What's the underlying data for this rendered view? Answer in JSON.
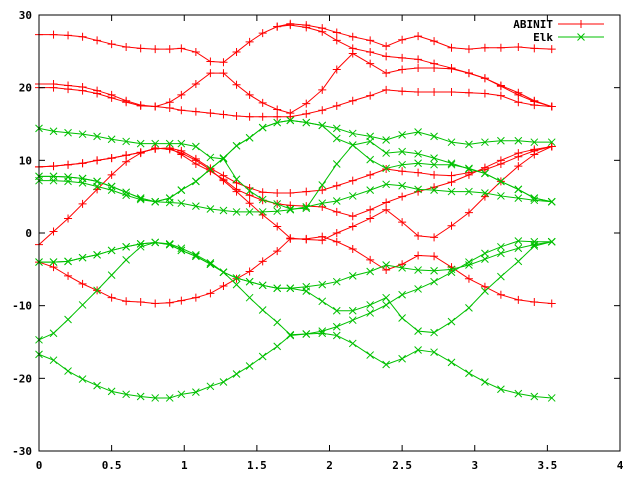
{
  "chart_data": {
    "type": "line",
    "title": "",
    "xlabel": "",
    "ylabel": "",
    "xlim": [
      0,
      4
    ],
    "ylim": [
      -30,
      30
    ],
    "grid": false,
    "legend_position": "top-right",
    "x_ticks": [
      "0",
      "0.5",
      "1",
      "1.5",
      "2",
      "2.5",
      "3",
      "3.5",
      "4"
    ],
    "x_tick_values": [
      0,
      0.5,
      1,
      1.5,
      2,
      2.5,
      3,
      3.5,
      4
    ],
    "y_ticks": [
      "30",
      "20",
      "10",
      "0",
      "-10",
      "-20",
      "-30"
    ],
    "y_tick_values": [
      30,
      20,
      10,
      0,
      -10,
      -20,
      -30
    ],
    "x": [
      0,
      0.1,
      0.2,
      0.3,
      0.4,
      0.5,
      0.6,
      0.7,
      0.8,
      0.9,
      0.98,
      1.08,
      1.18,
      1.27,
      1.36,
      1.45,
      1.54,
      1.64,
      1.73,
      1.84,
      1.95,
      2.05,
      2.16,
      2.28,
      2.39,
      2.5,
      2.61,
      2.72,
      2.84,
      2.96,
      3.07,
      3.18,
      3.3,
      3.41,
      3.53
    ],
    "series": [
      {
        "name": "ABINIT",
        "color": "#ff0000",
        "marker": "plus",
        "bands": [
          [
            27.3,
            27.3,
            27.2,
            27.0,
            26.5,
            26.0,
            25.6,
            25.4,
            25.3,
            25.3,
            25.4,
            24.9,
            23.6,
            23.5,
            24.9,
            26.3,
            27.5,
            28.4,
            28.8,
            28.6,
            28.2,
            27.6,
            27.0,
            26.5,
            25.7,
            26.6,
            27.1,
            26.4,
            25.5,
            25.3,
            25.5,
            25.5,
            25.6,
            25.4,
            25.3
          ],
          [
            20.5,
            20.5,
            20.3,
            20.1,
            19.6,
            19.0,
            18.2,
            17.6,
            17.4,
            18.0,
            19.0,
            20.5,
            22.0,
            22.0,
            20.4,
            19.0,
            17.9,
            17.0,
            16.5,
            17.8,
            19.7,
            22.5,
            24.7,
            23.3,
            22.0,
            22.5,
            22.7,
            22.7,
            22.6,
            22.0,
            21.3,
            20.2,
            19.0,
            18.1,
            17.4
          ],
          [
            20.0,
            20.0,
            19.8,
            19.6,
            19.2,
            18.6,
            18.0,
            17.5,
            17.4,
            17.2,
            16.9,
            16.7,
            16.5,
            16.3,
            16.1,
            16.0,
            16.0,
            16.0,
            16.0,
            16.4,
            16.9,
            17.5,
            18.2,
            18.9,
            19.7,
            19.5,
            19.4,
            19.4,
            19.4,
            19.3,
            19.2,
            18.9,
            18.0,
            17.6,
            17.4
          ],
          [
            null,
            null,
            null,
            null,
            null,
            null,
            null,
            null,
            null,
            null,
            null,
            null,
            null,
            null,
            null,
            null,
            null,
            28.4,
            28.6,
            28.3,
            27.7,
            26.5,
            25.4,
            24.9,
            24.3,
            24.1,
            23.9,
            23.3,
            22.7,
            22.0,
            21.3,
            20.3,
            19.3,
            18.2,
            17.4
          ],
          [
            9.1,
            9.2,
            9.4,
            9.6,
            10.0,
            10.3,
            10.7,
            11.1,
            11.6,
            11.7,
            11.3,
            10.2,
            8.9,
            7.9,
            6.9,
            6.2,
            5.6,
            5.5,
            5.5,
            5.7,
            5.9,
            6.5,
            7.2,
            8.0,
            8.8,
            8.5,
            8.3,
            8.0,
            7.9,
            8.3,
            8.7,
            9.5,
            10.5,
            11.3,
            11.9
          ],
          [
            9.1,
            9.2,
            9.4,
            9.6,
            10.0,
            10.3,
            10.7,
            11.1,
            11.6,
            11.7,
            10.8,
            9.5,
            8.5,
            7.4,
            6.0,
            5.2,
            4.5,
            4.0,
            3.8,
            3.7,
            3.6,
            2.9,
            2.3,
            3.2,
            4.2,
            5.0,
            5.7,
            6.3,
            7.0,
            8.0,
            9.0,
            10.0,
            11.0,
            11.5,
            11.9
          ],
          [
            -1.6,
            0.2,
            2.0,
            4.0,
            6.0,
            8.0,
            9.8,
            11.0,
            11.7,
            11.5,
            11.0,
            10.0,
            8.7,
            7.2,
            5.7,
            4.1,
            2.5,
            0.9,
            -0.7,
            -0.9,
            -1.0,
            0.0,
            0.9,
            2.0,
            3.2,
            1.5,
            -0.4,
            -0.6,
            1.0,
            2.8,
            5.0,
            7.1,
            9.2,
            10.8,
            11.9
          ],
          [
            -4.0,
            -4.7,
            -5.9,
            -7.0,
            -7.9,
            -8.9,
            -9.4,
            -9.5,
            -9.7,
            -9.6,
            -9.3,
            -8.9,
            -8.3,
            -7.3,
            -6.3,
            -5.3,
            -3.9,
            -2.5,
            -0.8,
            -0.8,
            -0.5,
            -1.2,
            -2.2,
            -3.7,
            -5.1,
            -4.3,
            -3.1,
            -3.2,
            -4.7,
            -6.3,
            -7.4,
            -8.5,
            -9.2,
            -9.5,
            -9.7
          ]
        ]
      },
      {
        "name": "Elk",
        "color": "#00c000",
        "marker": "cross",
        "bands": [
          [
            14.4,
            14.0,
            13.8,
            13.6,
            13.3,
            12.9,
            12.6,
            12.3,
            12.3,
            12.3,
            12.3,
            11.9,
            10.4,
            10.2,
            7.4,
            5.8,
            4.6,
            4.0,
            3.3,
            3.4,
            6.6,
            9.5,
            12.1,
            12.6,
            11.0,
            11.2,
            10.9,
            10.3,
            9.6,
            8.8,
            8.2,
            7.1,
            6.0,
            4.8,
            4.3
          ],
          [
            7.8,
            7.8,
            7.7,
            7.5,
            7.1,
            6.4,
            5.6,
            4.8,
            4.3,
            4.8,
            5.9,
            7.1,
            8.8,
            10.3,
            12.0,
            13.1,
            14.5,
            15.2,
            15.5,
            15.2,
            14.8,
            14.4,
            13.7,
            13.3,
            12.8,
            13.5,
            13.9,
            13.3,
            12.5,
            12.2,
            12.5,
            12.7,
            12.7,
            12.5,
            12.5
          ],
          [
            7.8,
            7.8,
            7.7,
            7.5,
            7.1,
            6.4,
            5.6,
            4.8,
            4.3,
            4.8,
            5.9,
            7.1,
            8.8,
            10.3,
            12.0,
            13.1,
            14.5,
            15.2,
            15.5,
            15.2,
            14.8,
            13.0,
            12.1,
            10.1,
            8.9,
            9.4,
            9.6,
            9.4,
            9.4,
            8.9,
            8.2,
            7.1,
            6.0,
            4.8,
            4.3
          ],
          [
            7.2,
            7.2,
            7.1,
            6.9,
            6.4,
            5.9,
            5.2,
            4.6,
            4.3,
            4.2,
            4.1,
            3.7,
            3.3,
            3.1,
            2.9,
            2.9,
            2.9,
            3.0,
            3.2,
            3.6,
            4.1,
            4.4,
            5.1,
            5.9,
            6.7,
            6.5,
            6.0,
            5.9,
            5.7,
            5.7,
            5.5,
            5.1,
            4.8,
            4.5,
            4.3
          ],
          [
            -4.0,
            -4.0,
            -3.9,
            -3.4,
            -3.0,
            -2.4,
            -1.9,
            -1.5,
            -1.3,
            -1.6,
            -2.4,
            -3.2,
            -4.3,
            -5.4,
            -6.2,
            -6.7,
            -7.2,
            -7.6,
            -7.6,
            -7.4,
            -7.1,
            -6.7,
            -5.9,
            -5.3,
            -4.4,
            -4.8,
            -5.1,
            -5.2,
            -5.0,
            -4.4,
            -3.6,
            -2.8,
            -2.1,
            -1.6,
            -1.2
          ],
          [
            -4.0,
            -4.0,
            -3.9,
            -3.4,
            -3.0,
            -2.4,
            -1.9,
            -1.5,
            -1.3,
            -1.6,
            -2.4,
            -3.2,
            -4.3,
            -5.4,
            -6.2,
            -6.7,
            -7.2,
            -7.6,
            -7.6,
            -8.0,
            -9.4,
            -10.7,
            -10.7,
            -9.9,
            -8.9,
            -11.7,
            -13.5,
            -13.7,
            -12.2,
            -10.3,
            -8.0,
            -6.0,
            -3.9,
            -1.8,
            -1.2
          ],
          [
            -14.7,
            -13.8,
            -11.9,
            -9.9,
            -7.9,
            -5.8,
            -3.7,
            -1.9,
            -1.3,
            -1.5,
            -2.1,
            -3.0,
            -4.1,
            -5.4,
            -7.1,
            -8.9,
            -10.6,
            -12.3,
            -14.0,
            -13.9,
            -13.5,
            -12.9,
            -12.0,
            -11.0,
            -9.9,
            -8.5,
            -7.7,
            -6.7,
            -5.4,
            -4.0,
            -2.8,
            -1.9,
            -1.1,
            -1.2,
            -1.2
          ],
          [
            -16.7,
            -17.5,
            -19.0,
            -20.1,
            -21.0,
            -21.8,
            -22.2,
            -22.5,
            -22.7,
            -22.7,
            -22.2,
            -21.9,
            -21.1,
            -20.5,
            -19.4,
            -18.3,
            -17.0,
            -15.6,
            -14.1,
            -13.9,
            -13.8,
            -14.1,
            -15.2,
            -16.8,
            -18.1,
            -17.3,
            -16.1,
            -16.4,
            -17.8,
            -19.3,
            -20.5,
            -21.5,
            -22.1,
            -22.5,
            -22.7
          ]
        ]
      }
    ]
  }
}
